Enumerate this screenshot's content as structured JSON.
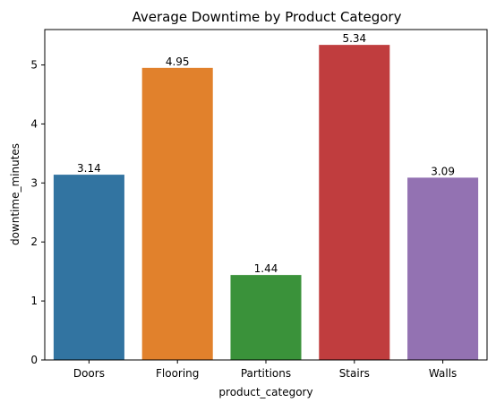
{
  "chart_data": {
    "type": "bar",
    "title": "Average Downtime by Product Category",
    "xlabel": "product_category",
    "ylabel": "downtime_minutes",
    "categories": [
      "Doors",
      "Flooring",
      "Partitions",
      "Stairs",
      "Walls"
    ],
    "values": [
      3.14,
      4.95,
      1.44,
      5.34,
      3.09
    ],
    "data_labels": [
      "3.14",
      "4.95",
      "1.44",
      "5.34",
      "3.09"
    ],
    "colors": [
      "#3274a1",
      "#e1812c",
      "#3a923a",
      "#c03d3e",
      "#9372b2"
    ],
    "ylim": [
      0,
      5.6
    ],
    "yticks": [
      0,
      1,
      2,
      3,
      4,
      5
    ],
    "ytick_labels": [
      "0",
      "1",
      "2",
      "3",
      "4",
      "5"
    ],
    "grid": false,
    "legend": "none"
  }
}
